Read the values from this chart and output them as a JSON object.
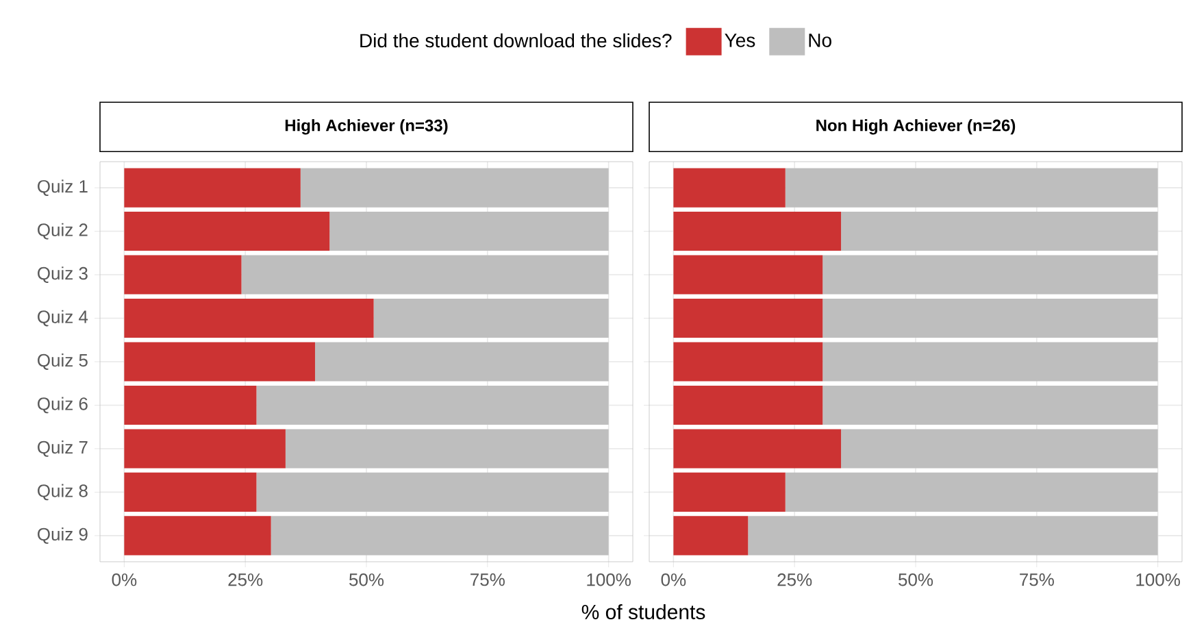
{
  "chart_data": [
    {
      "type": "bar",
      "orientation": "horizontal",
      "stacked": true,
      "title": "High Achiever (n=33)",
      "xlabel": "% of students",
      "legend_title": "Did the student download the slides?",
      "legend": "top",
      "categories": [
        "Quiz 1",
        "Quiz 2",
        "Quiz 3",
        "Quiz 4",
        "Quiz 5",
        "Quiz 6",
        "Quiz 7",
        "Quiz 8",
        "Quiz 9"
      ],
      "series": [
        {
          "name": "Yes",
          "color": "#cc3333",
          "values": [
            36.4,
            42.4,
            24.2,
            51.5,
            39.4,
            27.3,
            33.3,
            27.3,
            30.3
          ]
        },
        {
          "name": "No",
          "color": "#bebebe",
          "values": [
            63.6,
            57.6,
            75.8,
            48.5,
            60.6,
            72.7,
            66.7,
            72.7,
            69.7
          ]
        }
      ],
      "xlim": [
        -5,
        105
      ],
      "xticks": [
        {
          "value": 0,
          "label": "0%"
        },
        {
          "value": 25,
          "label": "25%"
        },
        {
          "value": 50,
          "label": "50%"
        },
        {
          "value": 75,
          "label": "75%"
        },
        {
          "value": 100,
          "label": "100%"
        }
      ],
      "grid": true
    },
    {
      "type": "bar",
      "orientation": "horizontal",
      "stacked": true,
      "title": "Non High Achiever (n=26)",
      "tick_labels": "x",
      "categories": [
        null,
        null,
        null,
        null,
        null,
        null,
        null,
        null,
        null
      ],
      "series": [
        {
          "color": "#cc3333",
          "values": [
            23.1,
            34.6,
            30.8,
            30.8,
            30.8,
            30.8,
            34.6,
            23.1,
            15.4
          ]
        },
        {
          "color": "#bebebe",
          "values": [
            76.9,
            65.4,
            69.2,
            69.2,
            69.2,
            69.2,
            65.4,
            76.9,
            84.6
          ]
        }
      ],
      "xlim": [
        -5,
        105
      ],
      "xticks": [
        {
          "value": 0,
          "label": "0%"
        },
        {
          "value": 25,
          "label": "25%"
        },
        {
          "value": 50,
          "label": "50%"
        },
        {
          "value": 75,
          "label": "75%"
        },
        {
          "value": 100,
          "label": "100%"
        }
      ],
      "grid": true
    }
  ]
}
